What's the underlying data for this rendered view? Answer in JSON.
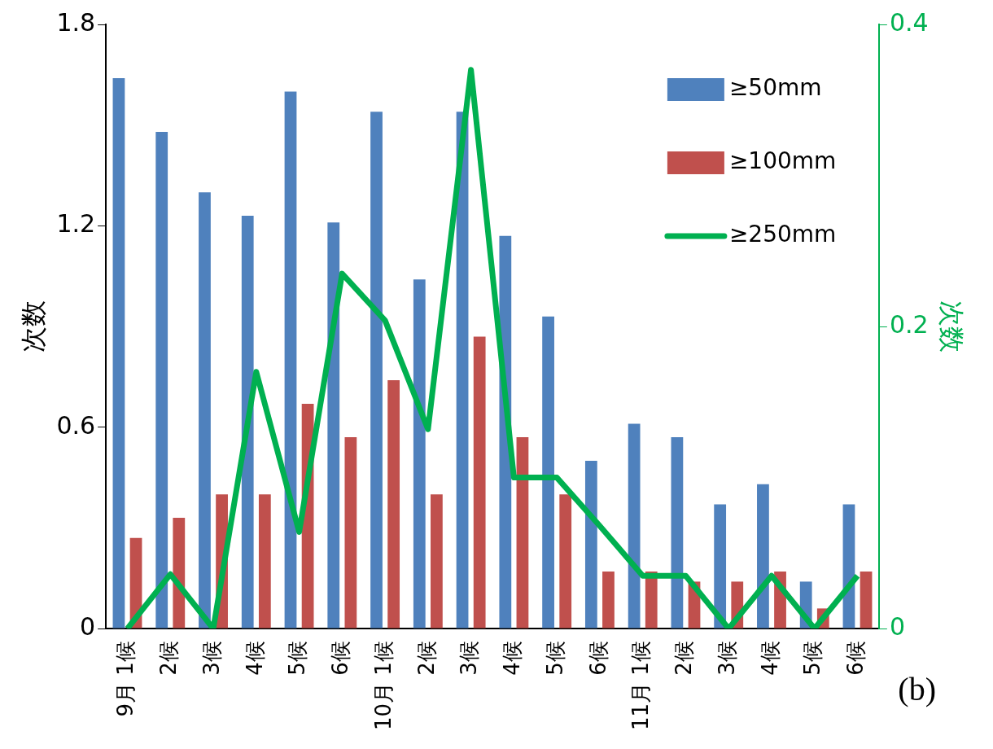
{
  "chart_data": {
    "type": "bar",
    "ylabel": "次数",
    "y2label": "次数",
    "categories": [
      "9月 1候",
      "2候",
      "3候",
      "4候",
      "5候",
      "6候",
      "10月 1候",
      "2候",
      "3候",
      "4候",
      "5候",
      "6候",
      "11月 1候",
      "2候",
      "3候",
      "4候",
      "5候",
      "6候"
    ],
    "series": [
      {
        "name": "≥50mm",
        "color": "#4f81bd",
        "values": [
          1.64,
          1.48,
          1.3,
          1.23,
          1.6,
          1.21,
          1.54,
          1.04,
          1.54,
          1.17,
          0.93,
          0.5,
          0.61,
          0.57,
          0.37,
          0.43,
          0.14,
          0.37
        ]
      },
      {
        "name": "≥100mm",
        "color": "#c0504d",
        "values": [
          0.27,
          0.33,
          0.4,
          0.4,
          0.67,
          0.57,
          0.74,
          0.4,
          0.87,
          0.57,
          0.4,
          0.17,
          0.17,
          0.14,
          0.14,
          0.17,
          0.06,
          0.17
        ]
      },
      {
        "name": "≥250mm",
        "type": "line",
        "axis": "y2",
        "color": "#00b050",
        "values": [
          0,
          0.036,
          0,
          0.17,
          0.064,
          0.235,
          0.204,
          0.132,
          0.37,
          0.1,
          0.1,
          0.068,
          0.035,
          0.035,
          0,
          0.035,
          0,
          0.035
        ]
      }
    ],
    "ylim": [
      0,
      1.8
    ],
    "yticks": [
      0,
      0.6,
      1.2,
      1.8
    ],
    "y2lim": [
      0,
      0.4
    ],
    "y2ticks": [
      0,
      0.2,
      0.4
    ],
    "grid": false,
    "legend": "top right",
    "marker": "none",
    "line_style": "solid",
    "annotations": [
      "(b)"
    ]
  }
}
